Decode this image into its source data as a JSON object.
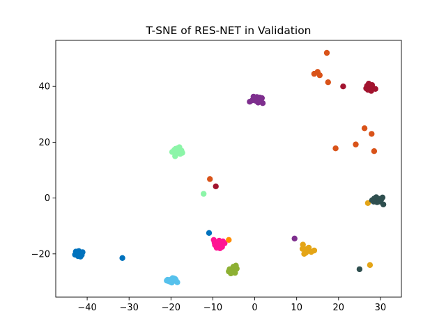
{
  "chart_data": {
    "type": "scatter",
    "title": "T-SNE of RES-NET in Validation",
    "xlabel": "",
    "ylabel": "",
    "xlim": [
      -47.5,
      35
    ],
    "ylim": [
      -35.5,
      56.5
    ],
    "xticks": [
      -40,
      -30,
      -20,
      -10,
      0,
      10,
      20,
      30
    ],
    "yticks": [
      -20,
      0,
      20,
      40
    ],
    "xtick_labels": [
      "−40",
      "−30",
      "−20",
      "−10",
      "0",
      "10",
      "20",
      "30"
    ],
    "ytick_labels": [
      "−20",
      "0",
      "20",
      "40"
    ],
    "grid": false,
    "legend": "none",
    "series": [
      {
        "color": "#0072bd",
        "points": [
          [
            -42.5,
            -19.5
          ],
          [
            -42.0,
            -19.0
          ],
          [
            -41.5,
            -19.6
          ],
          [
            -42.9,
            -20.3
          ],
          [
            -42.2,
            -20.8
          ],
          [
            -41.3,
            -20.4
          ],
          [
            -41.9,
            -20.2
          ],
          [
            -42.7,
            -19.2
          ],
          [
            -41.6,
            -21.0
          ],
          [
            -42.3,
            -19.8
          ],
          [
            -41.1,
            -19.4
          ],
          [
            -41.8,
            -20.6
          ],
          [
            -31.6,
            -21.5
          ],
          [
            -10.9,
            -12.5
          ]
        ]
      },
      {
        "color": "#56c1ec",
        "points": [
          [
            -20.5,
            -29.8
          ],
          [
            -20.0,
            -29.2
          ],
          [
            -19.5,
            -29.6
          ],
          [
            -19.0,
            -29.0
          ],
          [
            -19.8,
            -30.3
          ],
          [
            -20.8,
            -29.3
          ],
          [
            -19.3,
            -28.8
          ],
          [
            -18.8,
            -29.5
          ],
          [
            -20.2,
            -30.0
          ],
          [
            -19.6,
            -28.7
          ],
          [
            -18.5,
            -30.2
          ],
          [
            -21.0,
            -29.6
          ],
          [
            -19.9,
            -29.4
          ]
        ]
      },
      {
        "color": "#ff1493",
        "points": [
          [
            -9.8,
            -15.0
          ],
          [
            -9.2,
            -15.8
          ],
          [
            -8.5,
            -15.3
          ],
          [
            -8.0,
            -16.5
          ],
          [
            -9.5,
            -16.8
          ],
          [
            -7.6,
            -15.5
          ],
          [
            -8.8,
            -17.2
          ],
          [
            -9.1,
            -17.8
          ],
          [
            -7.2,
            -16.2
          ],
          [
            -8.3,
            -18.0
          ],
          [
            -7.8,
            -17.5
          ],
          [
            -9.6,
            -16.0
          ],
          [
            -8.6,
            -16.6
          ]
        ]
      },
      {
        "color": "#ff8c00",
        "points": [
          [
            -6.2,
            -15.0
          ]
        ]
      },
      {
        "color": "#8db033",
        "points": [
          [
            -6.0,
            -25.5
          ],
          [
            -5.5,
            -26.5
          ],
          [
            -4.9,
            -25.8
          ],
          [
            -4.5,
            -24.2
          ],
          [
            -5.2,
            -25.0
          ],
          [
            -6.2,
            -26.3
          ],
          [
            -4.7,
            -26.8
          ],
          [
            -5.7,
            -27.0
          ],
          [
            -4.3,
            -25.3
          ],
          [
            -5.1,
            -24.6
          ]
        ]
      },
      {
        "color": "#e4a517",
        "points": [
          [
            11.5,
            -16.7
          ],
          [
            11.4,
            -18.2
          ],
          [
            12.0,
            -18.8
          ],
          [
            12.5,
            -18.2
          ],
          [
            13.0,
            -18.9
          ],
          [
            13.5,
            -19.3
          ],
          [
            14.2,
            -18.8
          ],
          [
            12.2,
            -19.6
          ],
          [
            11.8,
            -20.0
          ],
          [
            12.9,
            -17.8
          ],
          [
            27.0,
            -1.8
          ],
          [
            27.5,
            -24.0
          ]
        ]
      },
      {
        "color": "#7e2f8e",
        "points": [
          [
            -1.2,
            34.5
          ],
          [
            -0.6,
            35.0
          ],
          [
            0.0,
            35.8
          ],
          [
            0.5,
            36.2
          ],
          [
            1.0,
            35.0
          ],
          [
            0.8,
            34.2
          ],
          [
            1.5,
            35.5
          ],
          [
            1.9,
            34.0
          ],
          [
            0.3,
            34.8
          ],
          [
            1.2,
            36.0
          ],
          [
            -0.3,
            36.3
          ],
          [
            1.7,
            35.8
          ],
          [
            9.5,
            -14.5
          ]
        ]
      },
      {
        "color": "#8cf5a8",
        "points": [
          [
            -19.7,
            16.5
          ],
          [
            -19.2,
            17.2
          ],
          [
            -18.5,
            17.8
          ],
          [
            -18.0,
            18.2
          ],
          [
            -17.5,
            17.0
          ],
          [
            -18.8,
            16.0
          ],
          [
            -17.8,
            15.8
          ],
          [
            -19.0,
            15.0
          ],
          [
            -18.2,
            16.6
          ],
          [
            -17.3,
            16.2
          ],
          [
            -18.9,
            17.6
          ],
          [
            -12.2,
            1.5
          ]
        ]
      },
      {
        "color": "#d95319",
        "points": [
          [
            17.2,
            52.0
          ],
          [
            14.2,
            44.5
          ],
          [
            15.0,
            45.2
          ],
          [
            15.5,
            44.0
          ],
          [
            17.5,
            41.5
          ],
          [
            -10.7,
            6.8
          ],
          [
            26.2,
            25.0
          ],
          [
            27.9,
            23.0
          ],
          [
            24.1,
            19.2
          ],
          [
            19.3,
            17.8
          ],
          [
            28.5,
            16.8
          ]
        ]
      },
      {
        "color": "#a2142f",
        "points": [
          [
            27.0,
            38.8
          ],
          [
            27.5,
            39.7
          ],
          [
            28.0,
            40.5
          ],
          [
            26.8,
            40.2
          ],
          [
            27.2,
            41.0
          ],
          [
            28.3,
            39.2
          ],
          [
            27.8,
            38.4
          ],
          [
            26.6,
            39.3
          ],
          [
            28.8,
            39.1
          ],
          [
            21.1,
            40.0
          ],
          [
            -9.3,
            4.2
          ]
        ]
      },
      {
        "color": "#2f4f4f",
        "points": [
          [
            28.0,
            -0.8
          ],
          [
            28.5,
            -0.2
          ],
          [
            29.0,
            0.3
          ],
          [
            29.5,
            -0.7
          ],
          [
            30.0,
            -1.3
          ],
          [
            30.5,
            0.2
          ],
          [
            29.2,
            -1.5
          ],
          [
            28.4,
            -1.3
          ],
          [
            29.7,
            -0.3
          ],
          [
            30.2,
            -0.5
          ],
          [
            30.7,
            -2.3
          ],
          [
            25.0,
            -25.5
          ]
        ]
      }
    ]
  }
}
